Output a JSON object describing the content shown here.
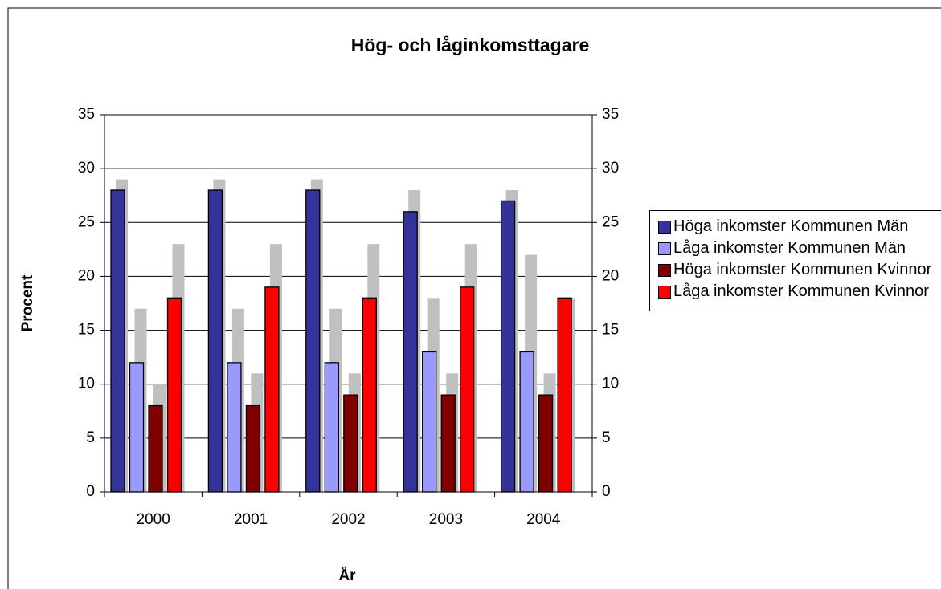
{
  "chart_data": {
    "type": "bar",
    "title": "Hög- och låginkomsttagare",
    "y_label": "Procent",
    "x_label": "År",
    "categories": [
      "2000",
      "2001",
      "2002",
      "2003",
      "2004"
    ],
    "series": [
      {
        "name": "Höga inkomster Kommunen Män",
        "color": "#333399",
        "values": [
          28,
          28,
          28,
          26,
          27
        ]
      },
      {
        "name": "Låga inkomster Kommunen Män",
        "color": "#9999ff",
        "values": [
          12,
          12,
          12,
          13,
          13
        ]
      },
      {
        "name": "Höga inkomster Kommunen Kvinnor",
        "color": "#800000",
        "values": [
          8,
          8,
          9,
          9,
          9
        ]
      },
      {
        "name": "Låga inkomster Kommunen Kvinnor",
        "color": "#ff0000",
        "values": [
          18,
          19,
          18,
          19,
          18
        ]
      }
    ],
    "background_series": [
      {
        "color": "#c0c0c0",
        "values": [
          29,
          29,
          29,
          28,
          28
        ]
      },
      {
        "color": "#c0c0c0",
        "values": [
          17,
          17,
          17,
          18,
          22
        ]
      },
      {
        "color": "#c0c0c0",
        "values": [
          10,
          11,
          11,
          11,
          11
        ]
      },
      {
        "color": "#c0c0c0",
        "values": [
          23,
          23,
          23,
          23,
          18
        ]
      }
    ],
    "ylim": [
      0,
      35
    ],
    "yticks": [
      0,
      5,
      10,
      15,
      20,
      25,
      30,
      35
    ],
    "y2lim": [
      0,
      35
    ],
    "y2ticks": [
      0,
      5,
      10,
      15,
      20,
      25,
      30,
      35
    ],
    "grid": true,
    "legend": "right"
  }
}
